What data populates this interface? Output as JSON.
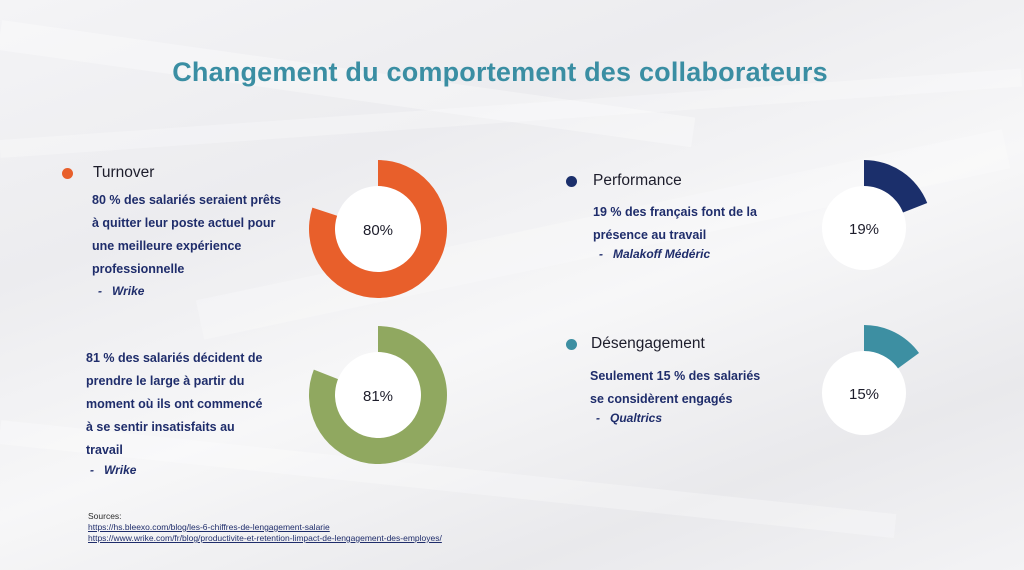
{
  "title": "Changement du comportement des collaborateurs",
  "colors": {
    "title": "#3a8ea3",
    "turnover": "#e85f2b",
    "engagement81": "#90a860",
    "performance": "#1b2f6b",
    "desengagement": "#3d8fa2",
    "text_dark": "#1f2d6b"
  },
  "stats": {
    "turnover": {
      "heading": "Turnover",
      "desc_lines": [
        "80 % des salariés seraient prêts",
        "à quitter leur poste actuel pour",
        "une meilleure expérience",
        "professionnelle"
      ],
      "source": "-   Wrike",
      "label": "80%"
    },
    "retention": {
      "desc_lines": [
        "81 % des salariés décident de",
        "prendre le large à partir du",
        "moment où ils ont commencé",
        "à se sentir insatisfaits au",
        "travail"
      ],
      "source": "-   Wrike",
      "label": "81%"
    },
    "performance": {
      "heading": "Performance",
      "desc_lines": [
        "19 % des français font de la",
        "présence au travail"
      ],
      "source": "-   Malakoff Médéric",
      "label": "19%"
    },
    "desengagement": {
      "heading": "Désengagement",
      "desc_lines": [
        "Seulement 15 % des salariés",
        "se considèrent engagés"
      ],
      "source": "-   Qualtrics",
      "label": "15%"
    }
  },
  "chart_data": [
    {
      "type": "pie",
      "style": "donut",
      "values": [
        80
      ],
      "label": "80%",
      "color": "#e85f2b"
    },
    {
      "type": "pie",
      "style": "donut",
      "values": [
        81
      ],
      "label": "81%",
      "color": "#90a860"
    },
    {
      "type": "pie",
      "style": "donut",
      "values": [
        19
      ],
      "label": "19%",
      "color": "#1b2f6b"
    },
    {
      "type": "pie",
      "style": "donut",
      "values": [
        15
      ],
      "label": "15%",
      "color": "#3d8fa2"
    }
  ],
  "sources": {
    "label": "Sources:",
    "links": [
      "https://hs.bleexo.com/blog/les-6-chiffres-de-lengagement-salarie",
      "https://www.wrike.com/fr/blog/productivite-et-retention-limpact-de-lengagement-des-employes/"
    ]
  }
}
